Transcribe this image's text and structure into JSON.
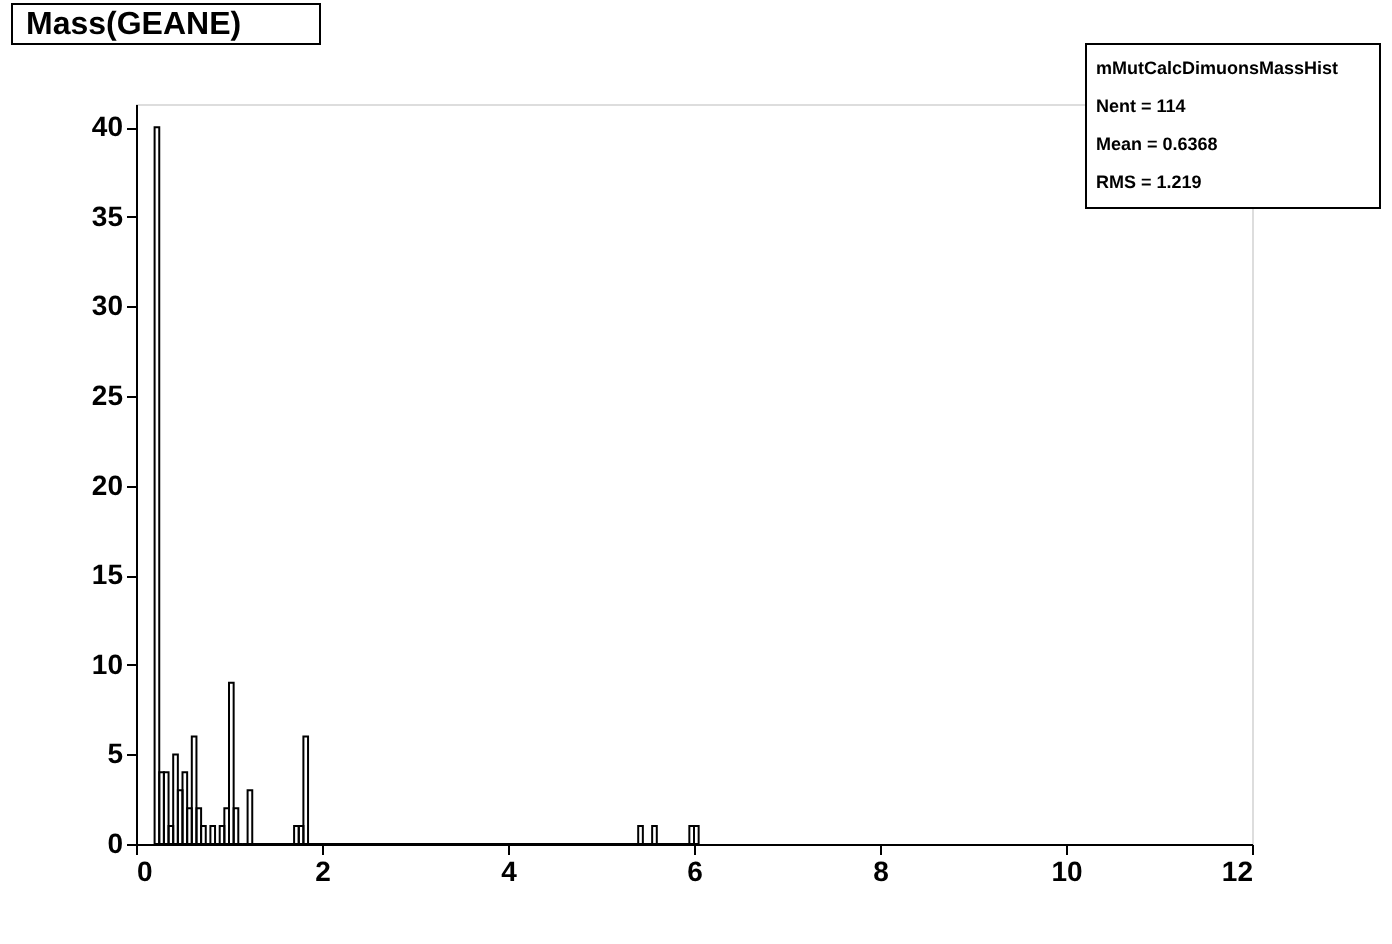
{
  "chart_data": {
    "type": "histogram",
    "title": "Mass(GEANE)",
    "bins": [
      0.2,
      0.25,
      0.3,
      0.35,
      0.4,
      0.45,
      0.5,
      0.55,
      0.6,
      0.65,
      0.7,
      0.75,
      0.8,
      0.85,
      0.9,
      0.95,
      1.0,
      1.05,
      1.1,
      1.15,
      1.2,
      1.25,
      1.7,
      1.75,
      1.8,
      1.85,
      5.4,
      5.45,
      5.55,
      5.6,
      5.95,
      6.0,
      6.05
    ],
    "values": [
      40,
      4,
      4,
      1,
      5,
      3,
      4,
      2,
      6,
      2,
      1,
      0,
      1,
      0,
      1,
      2,
      9,
      2,
      0,
      0,
      3,
      0,
      1,
      1,
      6,
      0,
      1,
      0,
      1,
      0,
      1,
      1
    ],
    "color": "#000000",
    "xlim": [
      0,
      12
    ],
    "xticks": [
      0,
      2,
      4,
      6,
      8,
      10,
      12
    ],
    "ylim": [
      0,
      41.3
    ],
    "yticks": [
      0,
      5,
      10,
      15,
      20,
      25,
      30,
      35,
      40
    ],
    "grid": false,
    "annotations": [
      "mMutCalcDimuonsMassHist",
      "Nent = 114",
      "Mean  = 0.6368",
      "RMS   = 1.219"
    ]
  }
}
